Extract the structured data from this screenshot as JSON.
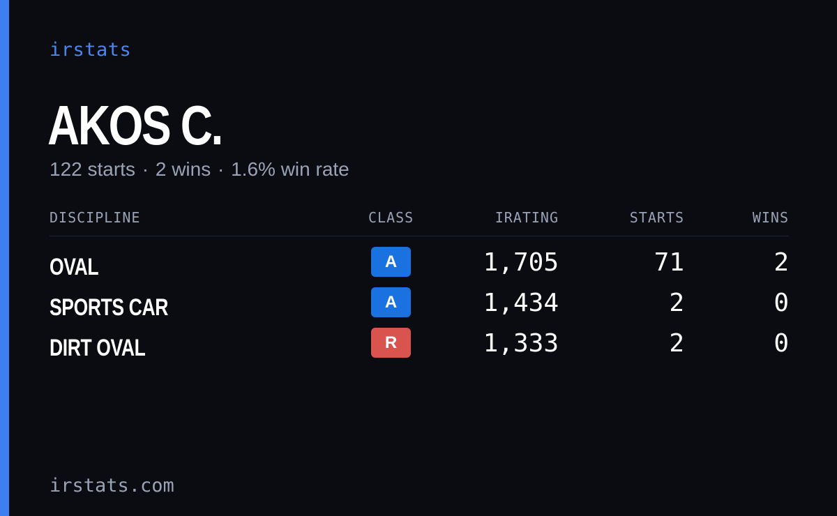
{
  "brand": "irstats",
  "driver": {
    "name": "AKOS C."
  },
  "summary": {
    "starts": "122 starts",
    "wins": "2 wins",
    "win_rate": "1.6% win rate",
    "separator": "·"
  },
  "table": {
    "headers": {
      "discipline": "DISCIPLINE",
      "class": "CLASS",
      "irating": "IRATING",
      "starts": "STARTS",
      "wins": "WINS"
    },
    "rows": [
      {
        "discipline": "OVAL",
        "class": "A",
        "class_color": "#1a72e0",
        "irating": "1,705",
        "starts": "71",
        "wins": "2"
      },
      {
        "discipline": "SPORTS CAR",
        "class": "A",
        "class_color": "#1a72e0",
        "irating": "1,434",
        "starts": "2",
        "wins": "0"
      },
      {
        "discipline": "DIRT OVAL",
        "class": "R",
        "class_color": "#d9534f",
        "irating": "1,333",
        "starts": "2",
        "wins": "0"
      }
    ]
  },
  "footer": "irstats.com",
  "colors": {
    "background": "#0a0c12",
    "accent": "#3d7ef0",
    "brand_text": "#4a86f0",
    "muted_text": "#9aa3b5"
  }
}
